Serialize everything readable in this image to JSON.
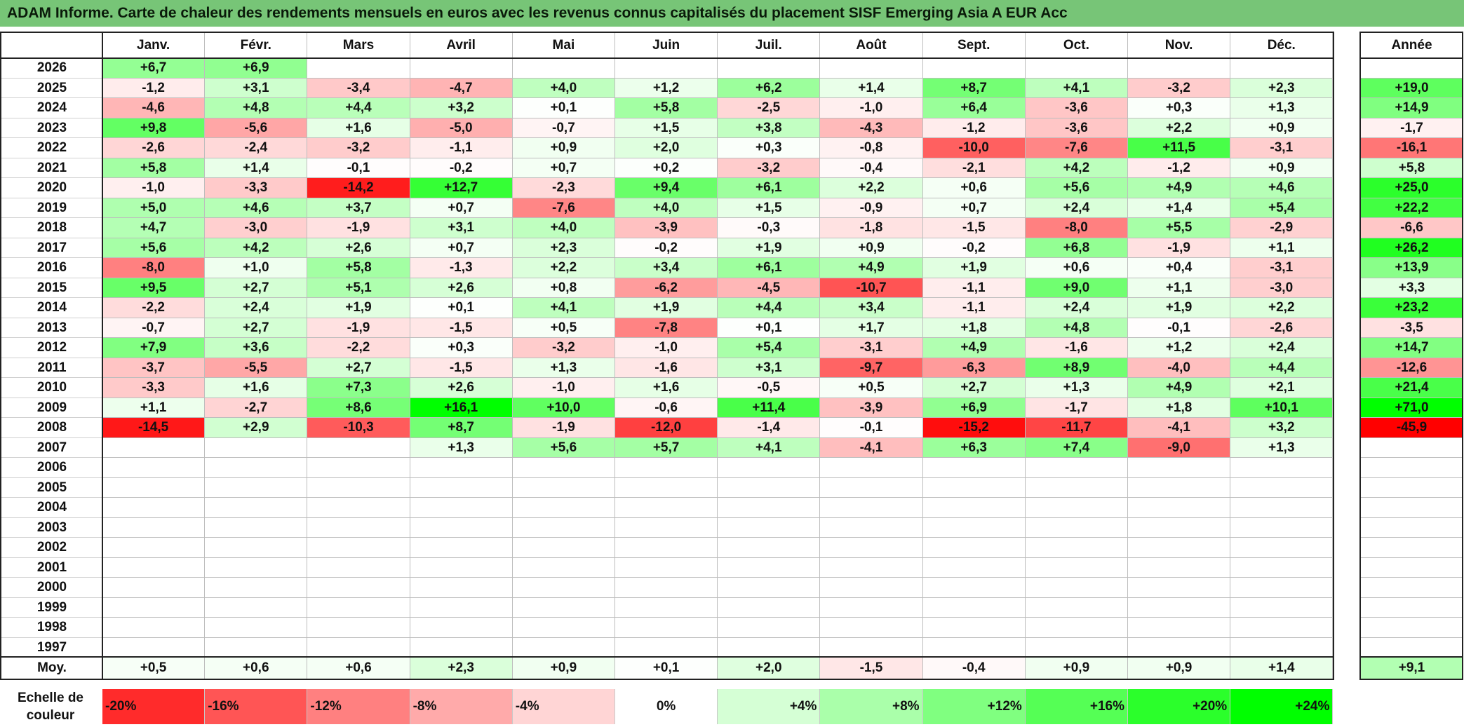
{
  "title": "ADAM Informe. Carte de chaleur des rendements mensuels en euros avec les revenus connus capitalisés du placement SISF Emerging Asia A EUR Acc",
  "chart_data": {
    "type": "heatmap",
    "columns": [
      "Janv.",
      "Févr.",
      "Mars",
      "Avril",
      "Mai",
      "Juin",
      "Juil.",
      "Août",
      "Sept.",
      "Oct.",
      "Nov.",
      "Déc."
    ],
    "annual_header": "Année",
    "rows": [
      {
        "year": "2026",
        "months": [
          "+6,7",
          "+6,9",
          "",
          "",
          "",
          "",
          "",
          "",
          "",
          "",
          "",
          ""
        ],
        "annual": ""
      },
      {
        "year": "2025",
        "months": [
          "-1,2",
          "+3,1",
          "-3,4",
          "-4,7",
          "+4,0",
          "+1,2",
          "+6,2",
          "+1,4",
          "+8,7",
          "+4,1",
          "-3,2",
          "+2,3"
        ],
        "annual": "+19,0"
      },
      {
        "year": "2024",
        "months": [
          "-4,6",
          "+4,8",
          "+4,4",
          "+3,2",
          "+0,1",
          "+5,8",
          "-2,5",
          "-1,0",
          "+6,4",
          "-3,6",
          "+0,3",
          "+1,3"
        ],
        "annual": "+14,9"
      },
      {
        "year": "2023",
        "months": [
          "+9,8",
          "-5,6",
          "+1,6",
          "-5,0",
          "-0,7",
          "+1,5",
          "+3,8",
          "-4,3",
          "-1,2",
          "-3,6",
          "+2,2",
          "+0,9"
        ],
        "annual": "-1,7"
      },
      {
        "year": "2022",
        "months": [
          "-2,6",
          "-2,4",
          "-3,2",
          "-1,1",
          "+0,9",
          "+2,0",
          "+0,3",
          "-0,8",
          "-10,0",
          "-7,6",
          "+11,5",
          "-3,1"
        ],
        "annual": "-16,1"
      },
      {
        "year": "2021",
        "months": [
          "+5,8",
          "+1,4",
          "-0,1",
          "-0,2",
          "+0,7",
          "+0,2",
          "-3,2",
          "-0,4",
          "-2,1",
          "+4,2",
          "-1,2",
          "+0,9"
        ],
        "annual": "+5,8"
      },
      {
        "year": "2020",
        "months": [
          "-1,0",
          "-3,3",
          "-14,2",
          "+12,7",
          "-2,3",
          "+9,4",
          "+6,1",
          "+2,2",
          "+0,6",
          "+5,6",
          "+4,9",
          "+4,6"
        ],
        "annual": "+25,0"
      },
      {
        "year": "2019",
        "months": [
          "+5,0",
          "+4,6",
          "+3,7",
          "+0,7",
          "-7,6",
          "+4,0",
          "+1,5",
          "-0,9",
          "+0,7",
          "+2,4",
          "+1,4",
          "+5,4"
        ],
        "annual": "+22,2"
      },
      {
        "year": "2018",
        "months": [
          "+4,7",
          "-3,0",
          "-1,9",
          "+3,1",
          "+4,0",
          "-3,9",
          "-0,3",
          "-1,8",
          "-1,5",
          "-8,0",
          "+5,5",
          "-2,9"
        ],
        "annual": "-6,6"
      },
      {
        "year": "2017",
        "months": [
          "+5,6",
          "+4,2",
          "+2,6",
          "+0,7",
          "+2,3",
          "-0,2",
          "+1,9",
          "+0,9",
          "-0,2",
          "+6,8",
          "-1,9",
          "+1,1"
        ],
        "annual": "+26,2"
      },
      {
        "year": "2016",
        "months": [
          "-8,0",
          "+1,0",
          "+5,8",
          "-1,3",
          "+2,2",
          "+3,4",
          "+6,1",
          "+4,9",
          "+1,9",
          "+0,6",
          "+0,4",
          "-3,1"
        ],
        "annual": "+13,9"
      },
      {
        "year": "2015",
        "months": [
          "+9,5",
          "+2,7",
          "+5,1",
          "+2,6",
          "+0,8",
          "-6,2",
          "-4,5",
          "-10,7",
          "-1,1",
          "+9,0",
          "+1,1",
          "-3,0"
        ],
        "annual": "+3,3"
      },
      {
        "year": "2014",
        "months": [
          "-2,2",
          "+2,4",
          "+1,9",
          "+0,1",
          "+4,1",
          "+1,9",
          "+4,4",
          "+3,4",
          "-1,1",
          "+2,4",
          "+1,9",
          "+2,2"
        ],
        "annual": "+23,2"
      },
      {
        "year": "2013",
        "months": [
          "-0,7",
          "+2,7",
          "-1,9",
          "-1,5",
          "+0,5",
          "-7,8",
          "+0,1",
          "+1,7",
          "+1,8",
          "+4,8",
          "-0,1",
          "-2,6"
        ],
        "annual": "-3,5"
      },
      {
        "year": "2012",
        "months": [
          "+7,9",
          "+3,6",
          "-2,2",
          "+0,3",
          "-3,2",
          "-1,0",
          "+5,4",
          "-3,1",
          "+4,9",
          "-1,6",
          "+1,2",
          "+2,4"
        ],
        "annual": "+14,7"
      },
      {
        "year": "2011",
        "months": [
          "-3,7",
          "-5,5",
          "+2,7",
          "-1,5",
          "+1,3",
          "-1,6",
          "+3,1",
          "-9,7",
          "-6,3",
          "+8,9",
          "-4,0",
          "+4,4"
        ],
        "annual": "-12,6"
      },
      {
        "year": "2010",
        "months": [
          "-3,3",
          "+1,6",
          "+7,3",
          "+2,6",
          "-1,0",
          "+1,6",
          "-0,5",
          "+0,5",
          "+2,7",
          "+1,3",
          "+4,9",
          "+2,1"
        ],
        "annual": "+21,4"
      },
      {
        "year": "2009",
        "months": [
          "+1,1",
          "-2,7",
          "+8,6",
          "+16,1",
          "+10,0",
          "-0,6",
          "+11,4",
          "-3,9",
          "+6,9",
          "-1,7",
          "+1,8",
          "+10,1"
        ],
        "annual": "+71,0"
      },
      {
        "year": "2008",
        "months": [
          "-14,5",
          "+2,9",
          "-10,3",
          "+8,7",
          "-1,9",
          "-12,0",
          "-1,4",
          "-0,1",
          "-15,2",
          "-11,7",
          "-4,1",
          "+3,2"
        ],
        "annual": "-45,9"
      },
      {
        "year": "2007",
        "months": [
          "",
          "",
          "",
          "+1,3",
          "+5,6",
          "+5,7",
          "+4,1",
          "-4,1",
          "+6,3",
          "+7,4",
          "-9,0",
          "+1,3"
        ],
        "annual": ""
      },
      {
        "year": "2006",
        "months": [
          "",
          "",
          "",
          "",
          "",
          "",
          "",
          "",
          "",
          "",
          "",
          ""
        ],
        "annual": ""
      },
      {
        "year": "2005",
        "months": [
          "",
          "",
          "",
          "",
          "",
          "",
          "",
          "",
          "",
          "",
          "",
          ""
        ],
        "annual": ""
      },
      {
        "year": "2004",
        "months": [
          "",
          "",
          "",
          "",
          "",
          "",
          "",
          "",
          "",
          "",
          "",
          ""
        ],
        "annual": ""
      },
      {
        "year": "2003",
        "months": [
          "",
          "",
          "",
          "",
          "",
          "",
          "",
          "",
          "",
          "",
          "",
          ""
        ],
        "annual": ""
      },
      {
        "year": "2002",
        "months": [
          "",
          "",
          "",
          "",
          "",
          "",
          "",
          "",
          "",
          "",
          "",
          ""
        ],
        "annual": ""
      },
      {
        "year": "2001",
        "months": [
          "",
          "",
          "",
          "",
          "",
          "",
          "",
          "",
          "",
          "",
          "",
          ""
        ],
        "annual": ""
      },
      {
        "year": "2000",
        "months": [
          "",
          "",
          "",
          "",
          "",
          "",
          "",
          "",
          "",
          "",
          "",
          ""
        ],
        "annual": ""
      },
      {
        "year": "1999",
        "months": [
          "",
          "",
          "",
          "",
          "",
          "",
          "",
          "",
          "",
          "",
          "",
          ""
        ],
        "annual": ""
      },
      {
        "year": "1998",
        "months": [
          "",
          "",
          "",
          "",
          "",
          "",
          "",
          "",
          "",
          "",
          "",
          ""
        ],
        "annual": ""
      },
      {
        "year": "1997",
        "months": [
          "",
          "",
          "",
          "",
          "",
          "",
          "",
          "",
          "",
          "",
          "",
          ""
        ],
        "annual": ""
      }
    ],
    "average": {
      "label": "Moy.",
      "months": [
        "+0,5",
        "+0,6",
        "+0,6",
        "+2,3",
        "+0,9",
        "+0,1",
        "+2,0",
        "-1,5",
        "-0,4",
        "+0,9",
        "+0,9",
        "+1,4"
      ],
      "annual": "+9,1"
    },
    "color_scale": {
      "label": "Echelle de couleur",
      "stops": [
        "-20%",
        "-16%",
        "-12%",
        "-8%",
        "-4%",
        "0%",
        "+4%",
        "+8%",
        "+12%",
        "+16%",
        "+20%",
        "+24%"
      ],
      "values": [
        -20,
        -16,
        -12,
        -8,
        -4,
        0,
        4,
        8,
        12,
        16,
        20,
        24
      ],
      "negative_color": "#ff0000",
      "neutral_color": "#ffffff",
      "positive_color": "#00ff00"
    }
  }
}
